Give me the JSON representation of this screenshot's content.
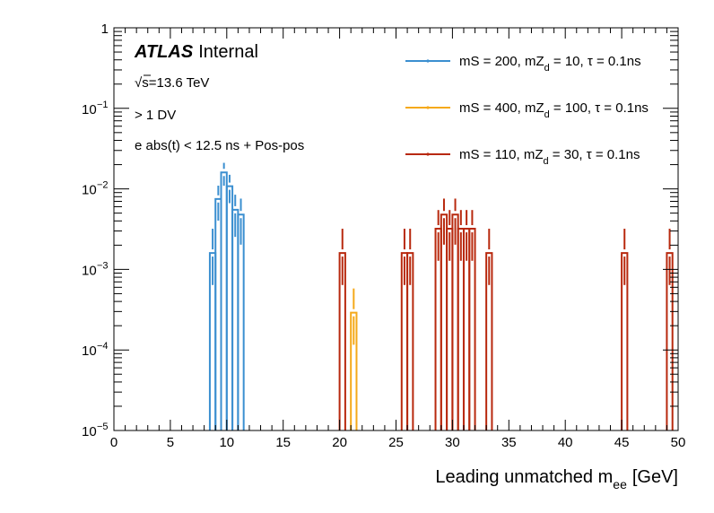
{
  "chart_data": {
    "type": "histogram",
    "title": "",
    "xlabel": "Leading unmatched m",
    "xlabel_sub": "ee",
    "xlabel_unit": "[GeV]",
    "xlim": [
      0,
      50
    ],
    "ylim": [
      1e-05,
      1
    ],
    "yscale": "log",
    "bin_width": 0.5,
    "x_ticks": [
      "0",
      "5",
      "10",
      "15",
      "20",
      "25",
      "30",
      "35",
      "40",
      "45",
      "50"
    ],
    "y_ticks": [
      {
        "mantissa": "1",
        "exp": ""
      },
      {
        "mantissa": "10",
        "exp": "−1"
      },
      {
        "mantissa": "10",
        "exp": "−2"
      },
      {
        "mantissa": "10",
        "exp": "−3"
      },
      {
        "mantissa": "10",
        "exp": "−4"
      },
      {
        "mantissa": "10",
        "exp": "−5"
      }
    ],
    "annotations": {
      "atlas": "ATLAS",
      "internal": "Internal",
      "sqrt_symbol": "√",
      "energy": "s=13.6 TeV",
      "selection1": "> 1 DV",
      "selection2": "e abs(t) < 12.5 ns + Pos-pos"
    },
    "series": [
      {
        "name": "mS = 200, mZ_d = 10, τ = 0.1ns",
        "label_main": "mS = 200, mZ",
        "label_sub": "d",
        "label_rest": " = 10, τ = 0.1ns",
        "color": "#3b8fd0",
        "bins": [
          {
            "lo": 8.5,
            "hi": 9.0,
            "value": 0.0016
          },
          {
            "lo": 9.0,
            "hi": 9.5,
            "value": 0.0075
          },
          {
            "lo": 9.5,
            "hi": 10.0,
            "value": 0.016
          },
          {
            "lo": 10.0,
            "hi": 10.5,
            "value": 0.0108
          },
          {
            "lo": 10.5,
            "hi": 11.0,
            "value": 0.0055
          },
          {
            "lo": 11.0,
            "hi": 11.5,
            "value": 0.0048
          }
        ]
      },
      {
        "name": "mS = 400, mZ_d = 100, τ = 0.1ns",
        "label_main": "mS = 400, mZ",
        "label_sub": "d",
        "label_rest": " = 100, τ = 0.1ns",
        "color": "#f5a91a",
        "bins": [
          {
            "lo": 21.0,
            "hi": 21.5,
            "value": 0.00029
          }
        ]
      },
      {
        "name": "mS = 110, mZ_d = 30, τ = 0.1ns",
        "label_main": "mS = 110, mZ",
        "label_sub": "d",
        "label_rest": " = 30, τ = 0.1ns",
        "color": "#b8290e",
        "bins": [
          {
            "lo": 20.0,
            "hi": 20.5,
            "value": 0.0016
          },
          {
            "lo": 25.5,
            "hi": 26.0,
            "value": 0.0016
          },
          {
            "lo": 26.0,
            "hi": 26.5,
            "value": 0.0016
          },
          {
            "lo": 28.5,
            "hi": 29.0,
            "value": 0.0032
          },
          {
            "lo": 29.0,
            "hi": 29.5,
            "value": 0.0048
          },
          {
            "lo": 29.5,
            "hi": 30.0,
            "value": 0.0032
          },
          {
            "lo": 30.0,
            "hi": 30.5,
            "value": 0.0048
          },
          {
            "lo": 30.5,
            "hi": 31.0,
            "value": 0.0032
          },
          {
            "lo": 31.0,
            "hi": 31.5,
            "value": 0.0032
          },
          {
            "lo": 31.5,
            "hi": 32.0,
            "value": 0.0032
          },
          {
            "lo": 33.0,
            "hi": 33.5,
            "value": 0.0016
          },
          {
            "lo": 45.0,
            "hi": 45.5,
            "value": 0.0016
          },
          {
            "lo": 49.0,
            "hi": 49.5,
            "value": 0.0016
          }
        ]
      }
    ],
    "legend_position": "top-right"
  }
}
